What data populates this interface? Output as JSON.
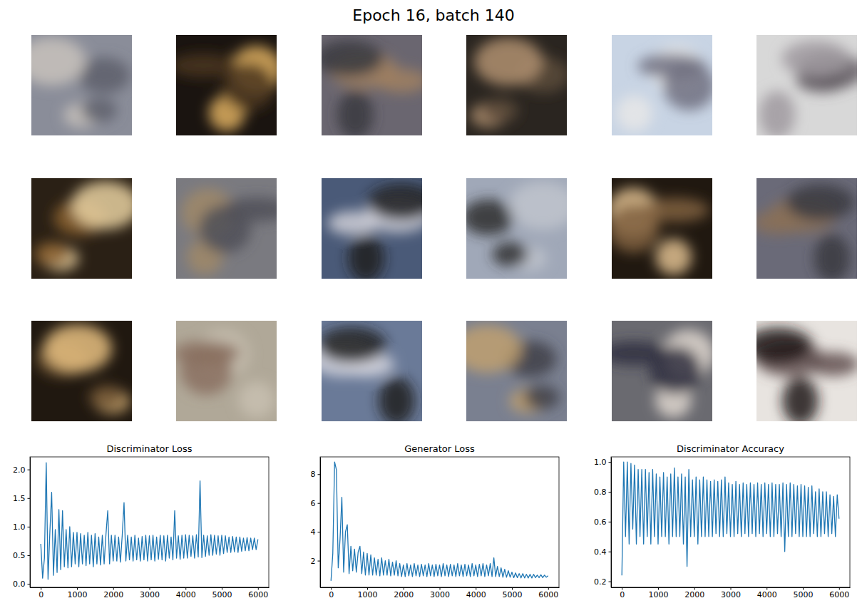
{
  "title": "Epoch 16, batch 140",
  "chart_data": [
    {
      "type": "line",
      "title": "Discriminator Loss",
      "color": "#1f77b4",
      "x": [
        0,
        50,
        100,
        150,
        200,
        250,
        300,
        350,
        400,
        450,
        500,
        550,
        600,
        650,
        700,
        750,
        800,
        850,
        900,
        950,
        1000,
        1050,
        1100,
        1150,
        1200,
        1250,
        1300,
        1350,
        1400,
        1450,
        1500,
        1550,
        1600,
        1650,
        1700,
        1750,
        1800,
        1850,
        1900,
        1950,
        2000,
        2050,
        2100,
        2150,
        2200,
        2250,
        2300,
        2350,
        2400,
        2450,
        2500,
        2550,
        2600,
        2650,
        2700,
        2750,
        2800,
        2850,
        2900,
        2950,
        3000,
        3050,
        3100,
        3150,
        3200,
        3250,
        3300,
        3350,
        3400,
        3450,
        3500,
        3550,
        3600,
        3650,
        3700,
        3750,
        3800,
        3850,
        3900,
        3950,
        4000,
        4050,
        4100,
        4150,
        4200,
        4250,
        4300,
        4350,
        4400,
        4450,
        4500,
        4550,
        4600,
        4650,
        4700,
        4750,
        4800,
        4850,
        4900,
        4950,
        5000,
        5050,
        5100,
        5150,
        5200,
        5250,
        5300,
        5350,
        5400,
        5450,
        5500,
        5550,
        5600,
        5650,
        5700,
        5750,
        5800,
        5850,
        5900,
        5950,
        6000
      ],
      "values": [
        0.7,
        0.1,
        0.45,
        2.12,
        0.08,
        0.9,
        1.6,
        0.15,
        0.95,
        0.2,
        1.3,
        0.25,
        1.28,
        0.3,
        0.95,
        0.28,
        1.0,
        0.3,
        0.9,
        0.35,
        0.9,
        0.3,
        0.88,
        0.35,
        0.85,
        0.32,
        0.9,
        0.35,
        0.85,
        0.3,
        0.88,
        0.35,
        0.82,
        0.33,
        0.85,
        0.35,
        0.86,
        1.28,
        0.35,
        0.85,
        0.4,
        0.85,
        0.4,
        0.82,
        0.38,
        0.85,
        1.42,
        0.4,
        0.85,
        0.42,
        0.82,
        0.4,
        0.85,
        0.42,
        0.8,
        0.4,
        0.83,
        0.42,
        0.85,
        0.4,
        0.84,
        0.42,
        0.85,
        0.4,
        0.82,
        0.43,
        0.85,
        0.42,
        0.84,
        0.4,
        0.85,
        0.45,
        0.82,
        0.42,
        1.28,
        0.45,
        0.84,
        0.43,
        0.85,
        0.45,
        0.86,
        0.45,
        0.85,
        0.48,
        0.84,
        0.45,
        0.86,
        0.47,
        1.8,
        0.46,
        0.85,
        0.48,
        0.84,
        0.5,
        0.86,
        0.5,
        0.85,
        0.52,
        0.84,
        0.5,
        0.85,
        0.53,
        0.84,
        0.55,
        0.82,
        0.55,
        0.83,
        0.56,
        0.82,
        0.55,
        0.82,
        0.57,
        0.8,
        0.58,
        0.81,
        0.58,
        0.8,
        0.6,
        0.8,
        0.6,
        0.78
      ],
      "xlim": [
        -300,
        6300
      ],
      "xticks": [
        0,
        1000,
        2000,
        3000,
        4000,
        5000,
        6000
      ],
      "ylim": [
        -0.06,
        2.22
      ],
      "yticks": [
        {
          "value": 0,
          "label": "0.0"
        },
        {
          "value": 0.5,
          "label": "0.5"
        },
        {
          "value": 1,
          "label": "1.0"
        },
        {
          "value": 1.5,
          "label": "1.5"
        },
        {
          "value": 2,
          "label": "2.0"
        }
      ]
    },
    {
      "type": "line",
      "title": "Generator Loss",
      "color": "#1f77b4",
      "x": [
        0,
        50,
        100,
        150,
        200,
        250,
        300,
        350,
        400,
        450,
        500,
        550,
        600,
        650,
        700,
        750,
        800,
        850,
        900,
        950,
        1000,
        1050,
        1100,
        1150,
        1200,
        1250,
        1300,
        1350,
        1400,
        1450,
        1500,
        1550,
        1600,
        1650,
        1700,
        1750,
        1800,
        1850,
        1900,
        1950,
        2000,
        2050,
        2100,
        2150,
        2200,
        2250,
        2300,
        2350,
        2400,
        2450,
        2500,
        2550,
        2600,
        2650,
        2700,
        2750,
        2800,
        2850,
        2900,
        2950,
        3000,
        3050,
        3100,
        3150,
        3200,
        3250,
        3300,
        3350,
        3400,
        3450,
        3500,
        3550,
        3600,
        3650,
        3700,
        3750,
        3800,
        3850,
        3900,
        3950,
        4000,
        4050,
        4100,
        4150,
        4200,
        4250,
        4300,
        4350,
        4400,
        4450,
        4500,
        4550,
        4600,
        4650,
        4700,
        4750,
        4800,
        4850,
        4900,
        4950,
        5000,
        5050,
        5100,
        5150,
        5200,
        5250,
        5300,
        5350,
        5400,
        5450,
        5500,
        5550,
        5600,
        5650,
        5700,
        5750,
        5800,
        5850,
        5900,
        5950,
        6000
      ],
      "values": [
        0.6,
        2.5,
        8.85,
        8.3,
        1.5,
        3.5,
        6.4,
        1.2,
        4.0,
        4.5,
        1.1,
        3.0,
        1.3,
        2.8,
        1.2,
        2.6,
        3.0,
        1.1,
        2.6,
        1.0,
        2.5,
        1.0,
        2.4,
        1.0,
        2.2,
        1.0,
        2.1,
        0.95,
        2.2,
        1.0,
        2.0,
        1.0,
        2.1,
        0.95,
        1.9,
        1.0,
        2.0,
        0.95,
        1.8,
        0.9,
        1.7,
        0.9,
        1.8,
        0.95,
        1.7,
        0.9,
        1.8,
        0.95,
        1.7,
        0.9,
        1.75,
        0.95,
        1.7,
        0.9,
        1.8,
        0.95,
        1.7,
        0.9,
        1.75,
        0.95,
        1.7,
        0.9,
        1.8,
        0.95,
        1.7,
        0.9,
        1.75,
        0.95,
        1.7,
        0.9,
        1.8,
        0.95,
        1.7,
        0.9,
        1.75,
        0.95,
        1.7,
        0.9,
        1.8,
        0.95,
        1.7,
        0.9,
        1.75,
        0.95,
        1.8,
        0.9,
        1.7,
        0.95,
        1.8,
        0.9,
        2.2,
        0.9,
        1.6,
        0.9,
        1.5,
        0.85,
        1.4,
        0.85,
        1.3,
        0.85,
        1.2,
        0.82,
        1.15,
        0.82,
        1.1,
        0.8,
        1.1,
        0.8,
        1.05,
        0.8,
        1.05,
        0.8,
        1.05,
        0.82,
        1.0,
        0.82,
        1.02,
        0.82,
        1.0,
        0.85,
        0.95
      ],
      "xlim": [
        -300,
        6300
      ],
      "xticks": [
        0,
        1000,
        2000,
        3000,
        4000,
        5000,
        6000
      ],
      "ylim": [
        0.15,
        9.2
      ],
      "yticks": [
        2,
        4,
        6,
        8
      ]
    },
    {
      "type": "line",
      "title": "Discriminator Accuracy",
      "color": "#1f77b4",
      "x": [
        0,
        50,
        100,
        150,
        200,
        250,
        300,
        350,
        400,
        450,
        500,
        550,
        600,
        650,
        700,
        750,
        800,
        850,
        900,
        950,
        1000,
        1050,
        1100,
        1150,
        1200,
        1250,
        1300,
        1350,
        1400,
        1450,
        1500,
        1550,
        1600,
        1650,
        1700,
        1750,
        1800,
        1850,
        1900,
        1950,
        2000,
        2050,
        2100,
        2150,
        2200,
        2250,
        2300,
        2350,
        2400,
        2450,
        2500,
        2550,
        2600,
        2650,
        2700,
        2750,
        2800,
        2850,
        2900,
        2950,
        3000,
        3050,
        3100,
        3150,
        3200,
        3250,
        3300,
        3350,
        3400,
        3450,
        3500,
        3550,
        3600,
        3650,
        3700,
        3750,
        3800,
        3850,
        3900,
        3950,
        4000,
        4050,
        4100,
        4150,
        4200,
        4250,
        4300,
        4350,
        4400,
        4450,
        4500,
        4550,
        4600,
        4650,
        4700,
        4750,
        4800,
        4850,
        4900,
        4950,
        5000,
        5050,
        5100,
        5150,
        5200,
        5250,
        5300,
        5350,
        5400,
        5450,
        5500,
        5550,
        5600,
        5650,
        5700,
        5750,
        5800,
        5850,
        5900,
        5950,
        6000
      ],
      "values": [
        0.24,
        1.0,
        0.5,
        1.0,
        0.45,
        0.99,
        0.55,
        0.98,
        0.45,
        0.95,
        0.5,
        0.95,
        0.45,
        0.95,
        0.5,
        0.93,
        0.45,
        0.95,
        0.5,
        0.92,
        0.45,
        0.9,
        0.5,
        0.93,
        0.5,
        0.9,
        0.45,
        0.92,
        0.5,
        0.96,
        0.5,
        0.9,
        0.5,
        0.92,
        0.45,
        0.9,
        0.3,
        0.95,
        0.5,
        0.88,
        0.5,
        0.9,
        0.45,
        0.88,
        0.5,
        0.9,
        0.5,
        0.88,
        0.5,
        0.87,
        0.5,
        0.88,
        0.52,
        0.87,
        0.5,
        0.88,
        0.5,
        0.9,
        0.52,
        0.86,
        0.5,
        0.85,
        0.5,
        0.87,
        0.52,
        0.85,
        0.5,
        0.86,
        0.52,
        0.85,
        0.5,
        0.86,
        0.52,
        0.85,
        0.5,
        0.86,
        0.52,
        0.85,
        0.5,
        0.86,
        0.52,
        0.85,
        0.5,
        0.86,
        0.5,
        0.85,
        0.52,
        0.85,
        0.5,
        0.86,
        0.4,
        0.85,
        0.5,
        0.86,
        0.5,
        0.85,
        0.52,
        0.84,
        0.5,
        0.85,
        0.5,
        0.84,
        0.5,
        0.83,
        0.5,
        0.84,
        0.52,
        0.8,
        0.5,
        0.82,
        0.5,
        0.8,
        0.52,
        0.8,
        0.5,
        0.78,
        0.52,
        0.77,
        0.5,
        0.78,
        0.62
      ],
      "xlim": [
        -300,
        6300
      ],
      "xticks": [
        0,
        1000,
        2000,
        3000,
        4000,
        5000,
        6000
      ],
      "ylim": [
        0.16,
        1.034
      ],
      "yticks": [
        0.2,
        0.4,
        0.6,
        0.8,
        {
          "value": 1,
          "label": "1.0"
        }
      ]
    }
  ]
}
